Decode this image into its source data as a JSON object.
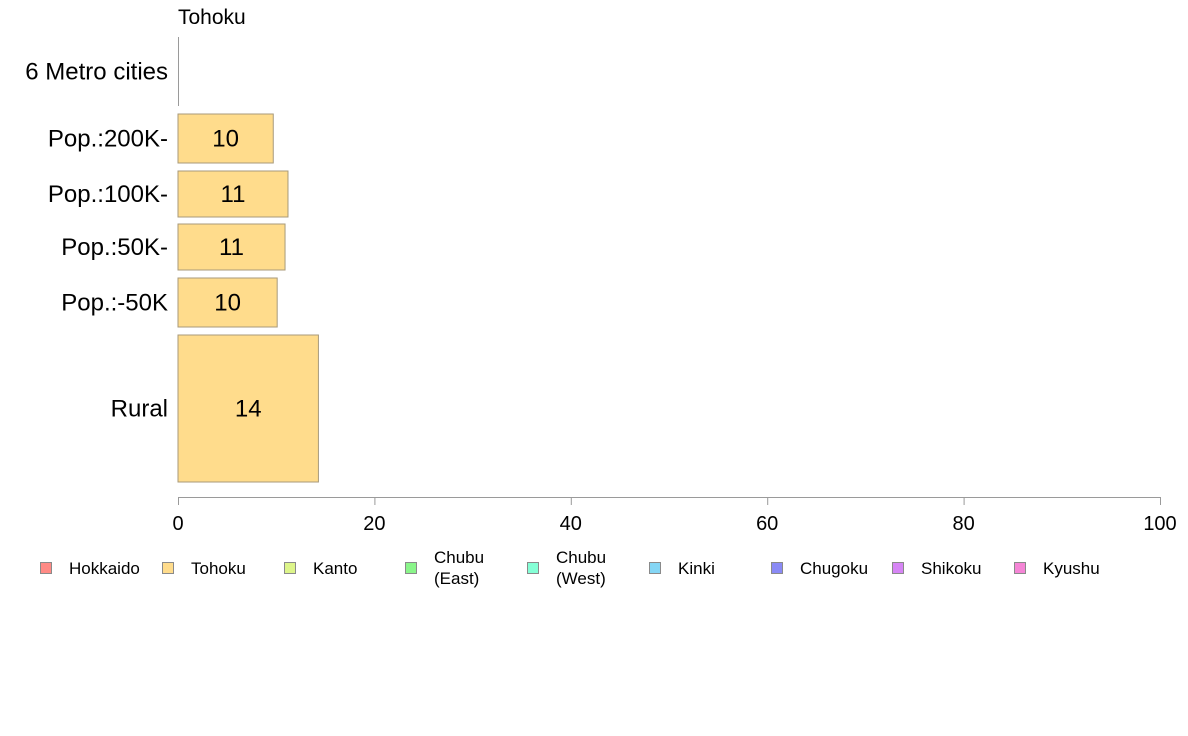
{
  "chart_data": {
    "type": "bar",
    "orientation": "horizontal",
    "title": "Tohoku",
    "categories": [
      "6 Metro cities",
      "Pop.:200K-",
      "Pop.:100K-",
      "Pop.:50K-",
      "Pop.:-50K",
      "Rural"
    ],
    "values": [
      null,
      9.7,
      11.2,
      10.9,
      10.1,
      14.3
    ],
    "value_labels": [
      "",
      "10",
      "11",
      "11",
      "10",
      "14"
    ],
    "bar_thickness_note": "variable-width bars",
    "xlim": [
      0,
      100
    ],
    "xticks": [
      "0",
      "20",
      "40",
      "60",
      "80",
      "100"
    ],
    "grid": false,
    "series_color": "#FFDC8C",
    "legend_position": "bottom",
    "legend": [
      {
        "label": "Hokkaido",
        "color": "#FF8A85"
      },
      {
        "label": "Tohoku",
        "color": "#FFDC8C"
      },
      {
        "label": "Kanto",
        "color": "#DDF58A"
      },
      {
        "label": "Chubu\n(East)",
        "color": "#8AF58A"
      },
      {
        "label": "Chubu\n(West)",
        "color": "#85FFD6"
      },
      {
        "label": "Kinki",
        "color": "#85D6F5"
      },
      {
        "label": "Chugoku",
        "color": "#8A8AF5"
      },
      {
        "label": "Shikoku",
        "color": "#D685F5"
      },
      {
        "label": "Kyushu",
        "color": "#F585D6"
      }
    ]
  }
}
